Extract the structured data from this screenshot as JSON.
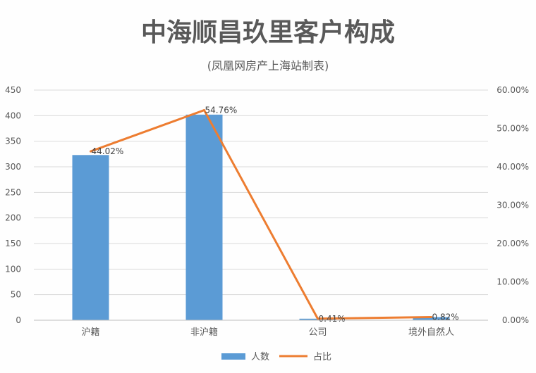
{
  "chart_data": {
    "type": "bar",
    "title": "中海顺昌玖里客户构成",
    "subtitle": "(凤凰网房产上海站制表)",
    "categories": [
      "沪籍",
      "非沪籍",
      "公司",
      "境外自然人"
    ],
    "series": [
      {
        "name": "人数",
        "type": "bar",
        "axis": "left",
        "color": "#5b9bd5",
        "values": [
          323,
          402,
          3,
          6
        ]
      },
      {
        "name": "占比",
        "type": "line",
        "axis": "right",
        "color": "#ed7d31",
        "values": [
          44.02,
          54.76,
          0.41,
          0.82
        ],
        "data_labels": [
          "44.02%",
          "54.76%",
          "0.41%",
          "0.82%"
        ]
      }
    ],
    "y_left": {
      "min": 0,
      "max": 450,
      "ticks": [
        "0",
        "50",
        "100",
        "150",
        "200",
        "250",
        "300",
        "350",
        "400",
        "450"
      ]
    },
    "y_right": {
      "min": 0,
      "max": 60,
      "ticks": [
        "0.00%",
        "10.00%",
        "20.00%",
        "30.00%",
        "40.00%",
        "50.00%",
        "60.00%"
      ]
    },
    "grid": true,
    "legend": "bottom"
  }
}
